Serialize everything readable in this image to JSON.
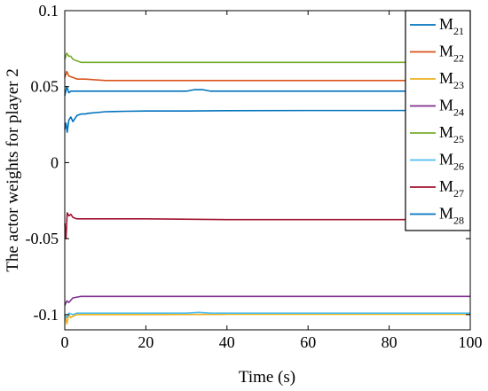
{
  "chart_data": {
    "type": "line",
    "title": "",
    "xlabel": "Time (s)",
    "ylabel": "The actor weights for player 2",
    "xlim": [
      0,
      100
    ],
    "ylim": [
      -0.11,
      0.1
    ],
    "xticks": [
      0,
      20,
      40,
      60,
      80,
      100
    ],
    "xtick_labels": [
      "0",
      "20",
      "40",
      "60",
      "80",
      "100"
    ],
    "yticks": [
      -0.1,
      -0.05,
      0,
      0.05,
      0.1
    ],
    "ytick_labels": [
      "-0.1",
      "-0.05",
      "0",
      "0.05",
      "0.1"
    ],
    "grid": false,
    "legend_position": "top-right",
    "series": [
      {
        "name": "M",
        "sub": "21",
        "color": "#0072BD",
        "x": [
          0,
          0.3,
          0.6,
          1,
          1.5,
          2,
          3,
          4,
          5,
          6,
          8,
          10,
          15,
          20,
          30,
          40,
          60,
          80,
          100
        ],
        "y": [
          0.022,
          0.026,
          0.02,
          0.028,
          0.03,
          0.027,
          0.031,
          0.032,
          0.032,
          0.0325,
          0.033,
          0.0335,
          0.0338,
          0.034,
          0.034,
          0.0342,
          0.0343,
          0.0343,
          0.0344
        ]
      },
      {
        "name": "M",
        "sub": "22",
        "color": "#D95319",
        "x": [
          0,
          0.5,
          1,
          2,
          3,
          4,
          5,
          10,
          20,
          40,
          60,
          80,
          100
        ],
        "y": [
          0.056,
          0.06,
          0.057,
          0.056,
          0.055,
          0.055,
          0.055,
          0.054,
          0.054,
          0.054,
          0.054,
          0.054,
          0.054
        ]
      },
      {
        "name": "M",
        "sub": "23",
        "color": "#EDB120",
        "x": [
          0,
          0.5,
          1,
          1.5,
          2,
          3,
          5,
          10,
          20,
          40,
          60,
          80,
          100
        ],
        "y": [
          -0.1,
          -0.106,
          -0.1,
          -0.102,
          -0.101,
          -0.1,
          -0.1,
          -0.1,
          -0.1,
          -0.0998,
          -0.0998,
          -0.0998,
          -0.0998
        ]
      },
      {
        "name": "M",
        "sub": "24",
        "color": "#7E2F8E",
        "x": [
          0,
          0.5,
          1,
          2,
          3,
          4,
          5,
          10,
          20,
          40,
          60,
          80,
          100
        ],
        "y": [
          -0.094,
          -0.091,
          -0.092,
          -0.089,
          -0.0885,
          -0.088,
          -0.088,
          -0.088,
          -0.088,
          -0.088,
          -0.088,
          -0.088,
          -0.088
        ]
      },
      {
        "name": "M",
        "sub": "25",
        "color": "#77AC30",
        "x": [
          0,
          0.5,
          1,
          1.5,
          2,
          3,
          4,
          5,
          10,
          20,
          40,
          60,
          80,
          100
        ],
        "y": [
          0.068,
          0.072,
          0.07,
          0.07,
          0.068,
          0.067,
          0.066,
          0.066,
          0.066,
          0.066,
          0.066,
          0.066,
          0.066,
          0.066
        ]
      },
      {
        "name": "M",
        "sub": "26",
        "color": "#4DBEEE",
        "x": [
          0,
          0.5,
          1,
          2,
          3,
          5,
          10,
          20,
          30,
          33,
          36,
          40,
          60,
          80,
          100
        ],
        "y": [
          -0.1,
          -0.102,
          -0.099,
          -0.1,
          -0.099,
          -0.099,
          -0.099,
          -0.099,
          -0.099,
          -0.0985,
          -0.099,
          -0.099,
          -0.099,
          -0.099,
          -0.099
        ]
      },
      {
        "name": "M",
        "sub": "27",
        "color": "#A2142F",
        "x": [
          0,
          0.3,
          0.6,
          1,
          1.5,
          2,
          3,
          5,
          10,
          20,
          40,
          60,
          80,
          100
        ],
        "y": [
          -0.04,
          -0.05,
          -0.033,
          -0.035,
          -0.034,
          -0.036,
          -0.037,
          -0.037,
          -0.037,
          -0.037,
          -0.0375,
          -0.0375,
          -0.0375,
          -0.0375
        ]
      },
      {
        "name": "M",
        "sub": "28",
        "color": "#0072BD",
        "x": [
          0,
          0.5,
          1,
          1.5,
          2,
          3,
          5,
          10,
          20,
          30,
          32,
          34,
          36,
          40,
          60,
          80,
          100
        ],
        "y": [
          0.044,
          0.05,
          0.046,
          0.047,
          0.047,
          0.047,
          0.047,
          0.047,
          0.047,
          0.047,
          0.048,
          0.048,
          0.047,
          0.047,
          0.047,
          0.047,
          0.047
        ]
      }
    ]
  }
}
